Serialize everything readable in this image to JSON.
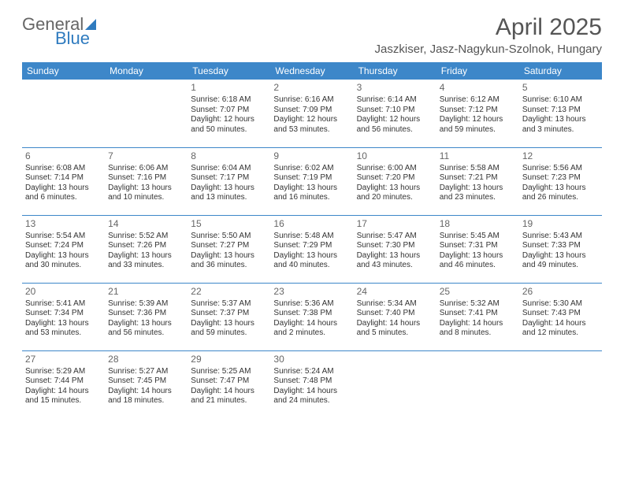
{
  "logo": {
    "part1": "General",
    "part2": "Blue"
  },
  "title": "April 2025",
  "location": "Jaszkiser, Jasz-Nagykun-Szolnok, Hungary",
  "colors": {
    "header_bg": "#3d87c9",
    "border": "#3d87c9",
    "text": "#333333",
    "muted": "#666666",
    "logo_blue": "#2f7bbf",
    "background": "#ffffff"
  },
  "weekdays": [
    "Sunday",
    "Monday",
    "Tuesday",
    "Wednesday",
    "Thursday",
    "Friday",
    "Saturday"
  ],
  "weeks": [
    [
      null,
      null,
      {
        "n": "1",
        "sr": "Sunrise: 6:18 AM",
        "ss": "Sunset: 7:07 PM",
        "d1": "Daylight: 12 hours",
        "d2": "and 50 minutes."
      },
      {
        "n": "2",
        "sr": "Sunrise: 6:16 AM",
        "ss": "Sunset: 7:09 PM",
        "d1": "Daylight: 12 hours",
        "d2": "and 53 minutes."
      },
      {
        "n": "3",
        "sr": "Sunrise: 6:14 AM",
        "ss": "Sunset: 7:10 PM",
        "d1": "Daylight: 12 hours",
        "d2": "and 56 minutes."
      },
      {
        "n": "4",
        "sr": "Sunrise: 6:12 AM",
        "ss": "Sunset: 7:12 PM",
        "d1": "Daylight: 12 hours",
        "d2": "and 59 minutes."
      },
      {
        "n": "5",
        "sr": "Sunrise: 6:10 AM",
        "ss": "Sunset: 7:13 PM",
        "d1": "Daylight: 13 hours",
        "d2": "and 3 minutes."
      }
    ],
    [
      {
        "n": "6",
        "sr": "Sunrise: 6:08 AM",
        "ss": "Sunset: 7:14 PM",
        "d1": "Daylight: 13 hours",
        "d2": "and 6 minutes."
      },
      {
        "n": "7",
        "sr": "Sunrise: 6:06 AM",
        "ss": "Sunset: 7:16 PM",
        "d1": "Daylight: 13 hours",
        "d2": "and 10 minutes."
      },
      {
        "n": "8",
        "sr": "Sunrise: 6:04 AM",
        "ss": "Sunset: 7:17 PM",
        "d1": "Daylight: 13 hours",
        "d2": "and 13 minutes."
      },
      {
        "n": "9",
        "sr": "Sunrise: 6:02 AM",
        "ss": "Sunset: 7:19 PM",
        "d1": "Daylight: 13 hours",
        "d2": "and 16 minutes."
      },
      {
        "n": "10",
        "sr": "Sunrise: 6:00 AM",
        "ss": "Sunset: 7:20 PM",
        "d1": "Daylight: 13 hours",
        "d2": "and 20 minutes."
      },
      {
        "n": "11",
        "sr": "Sunrise: 5:58 AM",
        "ss": "Sunset: 7:21 PM",
        "d1": "Daylight: 13 hours",
        "d2": "and 23 minutes."
      },
      {
        "n": "12",
        "sr": "Sunrise: 5:56 AM",
        "ss": "Sunset: 7:23 PM",
        "d1": "Daylight: 13 hours",
        "d2": "and 26 minutes."
      }
    ],
    [
      {
        "n": "13",
        "sr": "Sunrise: 5:54 AM",
        "ss": "Sunset: 7:24 PM",
        "d1": "Daylight: 13 hours",
        "d2": "and 30 minutes."
      },
      {
        "n": "14",
        "sr": "Sunrise: 5:52 AM",
        "ss": "Sunset: 7:26 PM",
        "d1": "Daylight: 13 hours",
        "d2": "and 33 minutes."
      },
      {
        "n": "15",
        "sr": "Sunrise: 5:50 AM",
        "ss": "Sunset: 7:27 PM",
        "d1": "Daylight: 13 hours",
        "d2": "and 36 minutes."
      },
      {
        "n": "16",
        "sr": "Sunrise: 5:48 AM",
        "ss": "Sunset: 7:29 PM",
        "d1": "Daylight: 13 hours",
        "d2": "and 40 minutes."
      },
      {
        "n": "17",
        "sr": "Sunrise: 5:47 AM",
        "ss": "Sunset: 7:30 PM",
        "d1": "Daylight: 13 hours",
        "d2": "and 43 minutes."
      },
      {
        "n": "18",
        "sr": "Sunrise: 5:45 AM",
        "ss": "Sunset: 7:31 PM",
        "d1": "Daylight: 13 hours",
        "d2": "and 46 minutes."
      },
      {
        "n": "19",
        "sr": "Sunrise: 5:43 AM",
        "ss": "Sunset: 7:33 PM",
        "d1": "Daylight: 13 hours",
        "d2": "and 49 minutes."
      }
    ],
    [
      {
        "n": "20",
        "sr": "Sunrise: 5:41 AM",
        "ss": "Sunset: 7:34 PM",
        "d1": "Daylight: 13 hours",
        "d2": "and 53 minutes."
      },
      {
        "n": "21",
        "sr": "Sunrise: 5:39 AM",
        "ss": "Sunset: 7:36 PM",
        "d1": "Daylight: 13 hours",
        "d2": "and 56 minutes."
      },
      {
        "n": "22",
        "sr": "Sunrise: 5:37 AM",
        "ss": "Sunset: 7:37 PM",
        "d1": "Daylight: 13 hours",
        "d2": "and 59 minutes."
      },
      {
        "n": "23",
        "sr": "Sunrise: 5:36 AM",
        "ss": "Sunset: 7:38 PM",
        "d1": "Daylight: 14 hours",
        "d2": "and 2 minutes."
      },
      {
        "n": "24",
        "sr": "Sunrise: 5:34 AM",
        "ss": "Sunset: 7:40 PM",
        "d1": "Daylight: 14 hours",
        "d2": "and 5 minutes."
      },
      {
        "n": "25",
        "sr": "Sunrise: 5:32 AM",
        "ss": "Sunset: 7:41 PM",
        "d1": "Daylight: 14 hours",
        "d2": "and 8 minutes."
      },
      {
        "n": "26",
        "sr": "Sunrise: 5:30 AM",
        "ss": "Sunset: 7:43 PM",
        "d1": "Daylight: 14 hours",
        "d2": "and 12 minutes."
      }
    ],
    [
      {
        "n": "27",
        "sr": "Sunrise: 5:29 AM",
        "ss": "Sunset: 7:44 PM",
        "d1": "Daylight: 14 hours",
        "d2": "and 15 minutes."
      },
      {
        "n": "28",
        "sr": "Sunrise: 5:27 AM",
        "ss": "Sunset: 7:45 PM",
        "d1": "Daylight: 14 hours",
        "d2": "and 18 minutes."
      },
      {
        "n": "29",
        "sr": "Sunrise: 5:25 AM",
        "ss": "Sunset: 7:47 PM",
        "d1": "Daylight: 14 hours",
        "d2": "and 21 minutes."
      },
      {
        "n": "30",
        "sr": "Sunrise: 5:24 AM",
        "ss": "Sunset: 7:48 PM",
        "d1": "Daylight: 14 hours",
        "d2": "and 24 minutes."
      },
      null,
      null,
      null
    ]
  ]
}
